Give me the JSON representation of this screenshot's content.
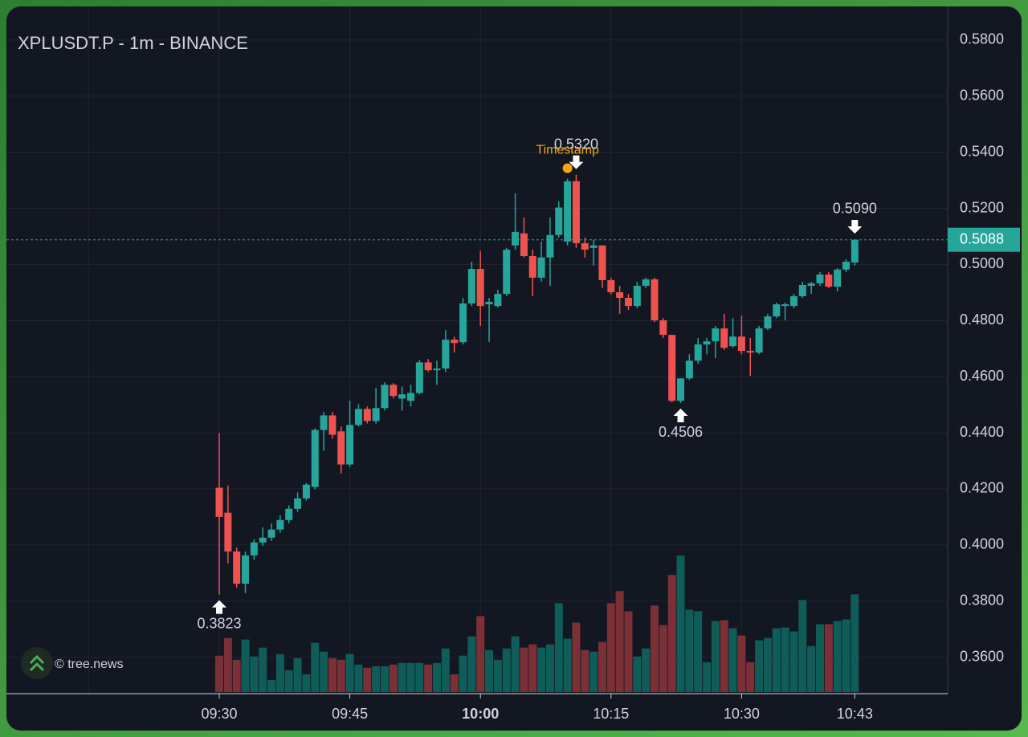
{
  "chart_data": {
    "type": "candlestick",
    "title": "XPLUSDT.P - 1m - BINANCE",
    "x": [
      "09:30",
      "09:31",
      "09:32",
      "09:33",
      "09:34",
      "09:35",
      "09:36",
      "09:37",
      "09:38",
      "09:39",
      "09:40",
      "09:41",
      "09:42",
      "09:43",
      "09:44",
      "09:45",
      "09:46",
      "09:47",
      "09:48",
      "09:49",
      "09:50",
      "09:51",
      "09:52",
      "09:53",
      "09:54",
      "09:55",
      "09:56",
      "09:57",
      "09:58",
      "09:59",
      "10:00",
      "10:01",
      "10:02",
      "10:03",
      "10:04",
      "10:05",
      "10:06",
      "10:07",
      "10:08",
      "10:09",
      "10:10",
      "10:11",
      "10:12",
      "10:13",
      "10:14",
      "10:15",
      "10:16",
      "10:17",
      "10:18",
      "10:19",
      "10:20",
      "10:21",
      "10:22",
      "10:23",
      "10:24",
      "10:25",
      "10:26",
      "10:27",
      "10:28",
      "10:29",
      "10:30",
      "10:31",
      "10:32",
      "10:33",
      "10:34",
      "10:35",
      "10:36",
      "10:37",
      "10:38",
      "10:39",
      "10:40",
      "10:41",
      "10:42",
      "10:43"
    ],
    "open": [
      0.4204,
      0.4115,
      0.3977,
      0.3862,
      0.3963,
      0.4009,
      0.4026,
      0.4055,
      0.4089,
      0.4129,
      0.4166,
      0.4207,
      0.441,
      0.4462,
      0.4405,
      0.4287,
      0.4428,
      0.4485,
      0.4442,
      0.4488,
      0.4571,
      0.4522,
      0.4514,
      0.4542,
      0.4651,
      0.4623,
      0.4629,
      0.4732,
      0.4723,
      0.4861,
      0.4984,
      0.4858,
      0.4852,
      0.4895,
      0.5068,
      0.5111,
      0.503,
      0.4953,
      0.5025,
      0.5105,
      0.5082,
      0.5297,
      0.5076,
      0.5059,
      0.5068,
      0.4944,
      0.4901,
      0.4881,
      0.4852,
      0.4924,
      0.4947,
      0.4801,
      0.4749,
      0.4514,
      0.4594,
      0.4657,
      0.4715,
      0.4726,
      0.4772,
      0.4709,
      0.4743,
      0.4692,
      0.4686,
      0.4772,
      0.4815,
      0.4852,
      0.4852,
      0.4887,
      0.4924,
      0.4933,
      0.4964,
      0.4921,
      0.4982,
      0.5007
    ],
    "high": [
      0.4399,
      0.4212,
      0.3991,
      0.3977,
      0.402,
      0.4063,
      0.4077,
      0.4106,
      0.4141,
      0.4187,
      0.4221,
      0.4416,
      0.4474,
      0.4474,
      0.4422,
      0.4514,
      0.4502,
      0.4494,
      0.456,
      0.458,
      0.4577,
      0.4565,
      0.4571,
      0.466,
      0.4663,
      0.4657,
      0.4766,
      0.4743,
      0.4881,
      0.501,
      0.5048,
      0.4881,
      0.491,
      0.5059,
      0.5254,
      0.5168,
      0.5053,
      0.5082,
      0.5168,
      0.5225,
      0.5306,
      0.532,
      0.5096,
      0.5088,
      0.5068,
      0.4953,
      0.4924,
      0.4895,
      0.4938,
      0.4953,
      0.4953,
      0.4809,
      0.4749,
      0.4594,
      0.468,
      0.4738,
      0.4738,
      0.4781,
      0.4824,
      0.4809,
      0.4818,
      0.4738,
      0.4781,
      0.4824,
      0.4864,
      0.4864,
      0.4895,
      0.4938,
      0.4938,
      0.4973,
      0.4973,
      0.4987,
      0.5019,
      0.509
    ],
    "low": [
      0.3823,
      0.3934,
      0.3848,
      0.3828,
      0.3948,
      0.3997,
      0.4014,
      0.4043,
      0.4077,
      0.4118,
      0.4158,
      0.4198,
      0.4336,
      0.4379,
      0.4255,
      0.4278,
      0.4422,
      0.4433,
      0.4433,
      0.4479,
      0.4522,
      0.4479,
      0.4494,
      0.4537,
      0.4617,
      0.4571,
      0.4617,
      0.4686,
      0.4715,
      0.4852,
      0.4781,
      0.4723,
      0.4847,
      0.4887,
      0.5053,
      0.5025,
      0.4887,
      0.4938,
      0.4924,
      0.5096,
      0.5068,
      0.5059,
      0.5025,
      0.4996,
      0.4916,
      0.4893,
      0.4824,
      0.4838,
      0.4844,
      0.4916,
      0.4795,
      0.4738,
      0.4508,
      0.4506,
      0.4588,
      0.4646,
      0.468,
      0.4666,
      0.4695,
      0.4703,
      0.468,
      0.4603,
      0.468,
      0.4766,
      0.4809,
      0.4801,
      0.4844,
      0.4881,
      0.4895,
      0.4924,
      0.4916,
      0.4904,
      0.4973,
      0.4996
    ],
    "close": [
      0.41,
      0.3977,
      0.3862,
      0.3963,
      0.4009,
      0.4026,
      0.4055,
      0.4089,
      0.4129,
      0.4166,
      0.4215,
      0.441,
      0.4462,
      0.4393,
      0.4287,
      0.4428,
      0.4485,
      0.4442,
      0.4488,
      0.4571,
      0.4531,
      0.4537,
      0.4542,
      0.4651,
      0.4623,
      0.4629,
      0.4732,
      0.472,
      0.4861,
      0.4984,
      0.4852,
      0.4867,
      0.4895,
      0.5053,
      0.5116,
      0.503,
      0.4953,
      0.5025,
      0.5105,
      0.5203,
      0.5297,
      0.5076,
      0.5053,
      0.5068,
      0.4944,
      0.4901,
      0.4881,
      0.4852,
      0.4924,
      0.4947,
      0.4801,
      0.4749,
      0.4514,
      0.4594,
      0.4657,
      0.4715,
      0.4726,
      0.4772,
      0.4703,
      0.4743,
      0.4692,
      0.4686,
      0.4772,
      0.4815,
      0.4858,
      0.4858,
      0.4887,
      0.4927,
      0.4933,
      0.4964,
      0.4921,
      0.4982,
      0.501,
      0.5088
    ],
    "volume": [
      45,
      67,
      40,
      65,
      44,
      55,
      15,
      47,
      27,
      42,
      22,
      61,
      50,
      42,
      40,
      47,
      34,
      30,
      32,
      32,
      34,
      36,
      36,
      36,
      34,
      36,
      54,
      22,
      45,
      69,
      94,
      52,
      40,
      54,
      69,
      55,
      59,
      55,
      59,
      110,
      66,
      86,
      52,
      50,
      62,
      110,
      125,
      100,
      44,
      54,
      107,
      83,
      145,
      169,
      102,
      100,
      37,
      88,
      89,
      79,
      70,
      37,
      64,
      67,
      79,
      80,
      75,
      114,
      57,
      84,
      84,
      88,
      90,
      121
    ],
    "up_color": "#26a69a",
    "down_color": "#ef5350",
    "volume_up_color": "#0f5c58",
    "volume_down_color": "#7b3037",
    "ylim": [
      0.347,
      0.592
    ],
    "yticks": [
      {
        "value": 0.36,
        "label": "0.3600"
      },
      {
        "value": 0.38,
        "label": "0.3800"
      },
      {
        "value": 0.4,
        "label": "0.4000"
      },
      {
        "value": 0.42,
        "label": "0.4200"
      },
      {
        "value": 0.44,
        "label": "0.4400"
      },
      {
        "value": 0.46,
        "label": "0.4600"
      },
      {
        "value": 0.48,
        "label": "0.4800"
      },
      {
        "value": 0.5,
        "label": "0.5000"
      },
      {
        "value": 0.52,
        "label": "0.5200"
      },
      {
        "value": 0.54,
        "label": "0.5400"
      },
      {
        "value": 0.56,
        "label": "0.5600"
      },
      {
        "value": 0.58,
        "label": "0.5800"
      }
    ],
    "xticks": [
      "09:30",
      "09:45",
      "10:00",
      "10:15",
      "10:30",
      "10:43"
    ],
    "grid": true,
    "last_price": {
      "value": 0.5088,
      "label": "0.5088"
    },
    "annotations": [
      {
        "value": 0.532,
        "label": "0.5320",
        "x": "10:11",
        "position": "above"
      },
      {
        "value": 0.3823,
        "label": "0.3823",
        "x": "09:30",
        "position": "below"
      },
      {
        "value": 0.4506,
        "label": "0.4506",
        "x": "10:23",
        "position": "below"
      },
      {
        "value": 0.509,
        "label": "0.5090",
        "x": "10:43",
        "position": "above"
      }
    ],
    "marker": {
      "label": "Timestamp",
      "x": "10:10",
      "color": "#f7a21b"
    },
    "watermark": "© tree.news"
  }
}
